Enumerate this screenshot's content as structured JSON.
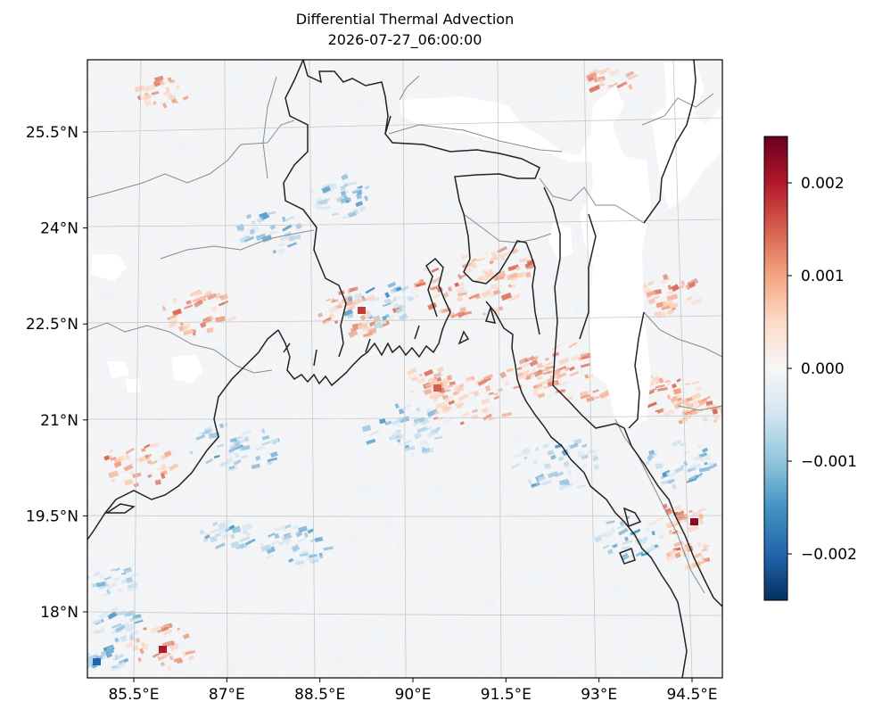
{
  "chart_data": {
    "type": "heatmap",
    "title": "Differential Thermal Advection",
    "subtitle": "2026-07-27_06:00:00",
    "projection": "map (Lambert-like, Bay of Bengal region)",
    "lon_range": [
      84.5,
      94.8
    ],
    "lat_range": [
      17.0,
      26.5
    ],
    "x_ticks": [
      "85.5°E",
      "87°E",
      "88.5°E",
      "90°E",
      "91.5°E",
      "93°E",
      "94.5°E"
    ],
    "y_ticks": [
      "25.5°N",
      "24°N",
      "22.5°N",
      "21°N",
      "19.5°N",
      "18°N"
    ],
    "x_tick_values": [
      85.5,
      87,
      88.5,
      90,
      91.5,
      93,
      94.5
    ],
    "y_tick_values": [
      25.5,
      24,
      22.5,
      21,
      19.5,
      18
    ],
    "colorbar": {
      "colormap": "RdBu_r",
      "vmin": -0.0025,
      "vmax": 0.0025,
      "ticks": [
        0.002,
        0.001,
        0.0,
        -0.001,
        -0.002
      ],
      "tick_labels": [
        "0.002",
        "0.001",
        "0.000",
        "−0.001",
        "−0.002"
      ]
    },
    "features": [
      "coastlines",
      "country borders",
      "state borders",
      "lat/lon gridlines"
    ],
    "grid": true,
    "masked_regions": "white (missing data) over high terrain in NE India / Myanmar border"
  },
  "colors": {
    "coast": "#222222",
    "borders": "#8a8a8a",
    "grid": "#c8c8c8",
    "frame": "#000000"
  }
}
